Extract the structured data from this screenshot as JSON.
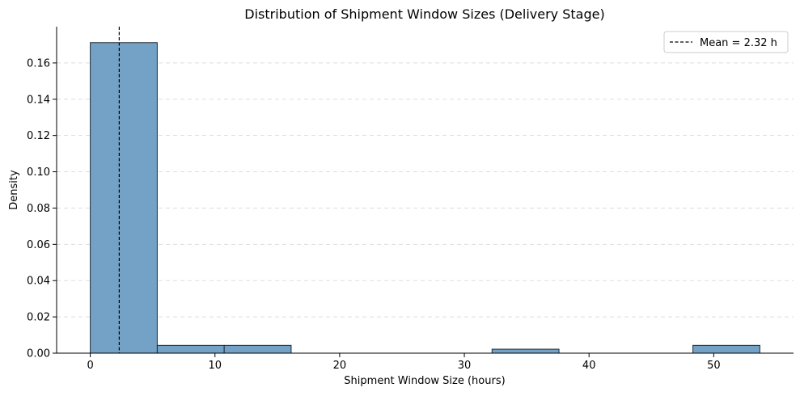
{
  "chart_data": {
    "type": "histogram",
    "title": "Distribution of Shipment Window Sizes (Delivery Stage)",
    "xlabel": "Shipment Window Size (hours)",
    "ylabel": "Density",
    "xlim": [
      -2.7,
      56.4
    ],
    "ylim": [
      0,
      0.18
    ],
    "xticks": [
      0,
      10,
      20,
      30,
      40,
      50
    ],
    "yticks": [
      0.0,
      0.02,
      0.04,
      0.06,
      0.08,
      0.1,
      0.12,
      0.14,
      0.16
    ],
    "ytick_labels": [
      "0.00",
      "0.02",
      "0.04",
      "0.06",
      "0.08",
      "0.10",
      "0.12",
      "0.14",
      "0.16"
    ],
    "bins": [
      {
        "x0": 0.0,
        "x1": 5.37,
        "density": 0.1712
      },
      {
        "x0": 5.37,
        "x1": 10.74,
        "density": 0.0043
      },
      {
        "x0": 10.74,
        "x1": 16.11,
        "density": 0.0043
      },
      {
        "x0": 16.11,
        "x1": 21.48,
        "density": 0.0
      },
      {
        "x0": 21.48,
        "x1": 26.85,
        "density": 0.0
      },
      {
        "x0": 26.85,
        "x1": 32.22,
        "density": 0.0
      },
      {
        "x0": 32.22,
        "x1": 37.59,
        "density": 0.0022
      },
      {
        "x0": 37.59,
        "x1": 42.96,
        "density": 0.0
      },
      {
        "x0": 42.96,
        "x1": 48.33,
        "density": 0.0
      },
      {
        "x0": 48.33,
        "x1": 53.7,
        "density": 0.0043
      }
    ],
    "mean_line": {
      "value": 2.32,
      "label": "Mean = 2.32 h"
    },
    "grid": "y-dashed",
    "legend_position": "top-right",
    "colors": {
      "bar_fill": "#73a2c6",
      "bar_edge": "#1f2a36",
      "mean_line": "#000000",
      "grid": "#dddddd"
    }
  }
}
